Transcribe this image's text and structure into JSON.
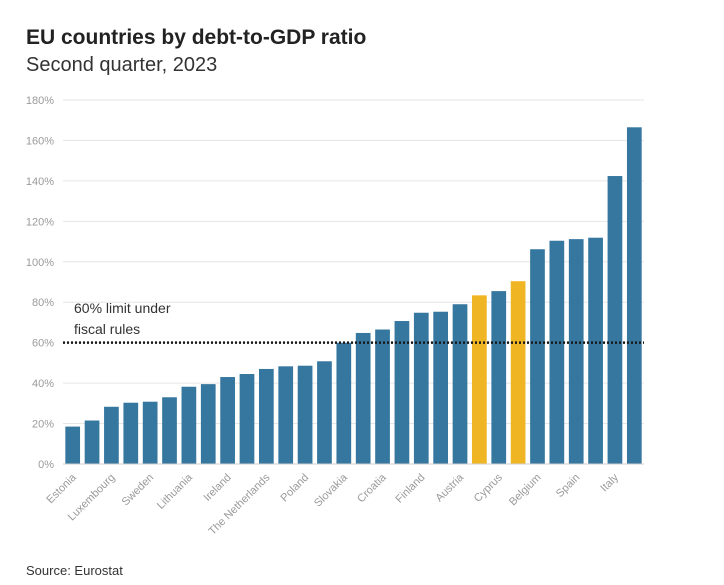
{
  "title": "EU countries by debt-to-GDP ratio",
  "subtitle": "Second quarter, 2023",
  "source": "Source: Eurostat",
  "colors": {
    "default_bar": "#36779f",
    "highlight_bar": "#f0b523",
    "grid": "#e6e6e6",
    "reference_line": "#1a1a1a"
  },
  "chart_data": {
    "type": "bar",
    "title": "EU countries by debt-to-GDP ratio",
    "subtitle": "Second quarter, 2023",
    "xlabel": "",
    "ylabel": "",
    "ylim": [
      0,
      180
    ],
    "y_ticks": [
      0,
      20,
      40,
      60,
      80,
      100,
      120,
      140,
      160,
      180
    ],
    "y_tick_labels": [
      "0%",
      "20%",
      "40%",
      "60%",
      "80%",
      "100%",
      "120%",
      "140%",
      "160%",
      "180%"
    ],
    "grid": true,
    "categories": [
      "Estonia",
      "",
      "Luxembourg",
      "",
      "Sweden",
      "",
      "Lithuania",
      "",
      "Ireland",
      "",
      "The Netherlands",
      "",
      "Poland",
      "",
      "Slovakia",
      "",
      "Croatia",
      "",
      "Finland",
      "",
      "Austria",
      "",
      "Cyprus",
      "",
      "Belgium",
      "",
      "Spain",
      "",
      "Italy",
      ""
    ],
    "values": [
      18.5,
      21.5,
      28.3,
      30.3,
      30.8,
      33.0,
      38.2,
      39.5,
      43.0,
      44.5,
      47.0,
      48.3,
      48.6,
      50.8,
      59.9,
      64.8,
      66.5,
      70.7,
      74.8,
      75.3,
      79.0,
      83.4,
      85.5,
      90.4,
      106.2,
      110.4,
      111.2,
      111.9,
      142.4,
      166.5
    ],
    "highlighted": [
      false,
      false,
      false,
      false,
      false,
      false,
      false,
      false,
      false,
      false,
      false,
      false,
      false,
      false,
      false,
      false,
      false,
      false,
      false,
      false,
      false,
      true,
      false,
      true,
      false,
      false,
      false,
      false,
      false,
      false
    ],
    "reference_line": {
      "value": 60,
      "label_lines": [
        "60% limit under",
        "fiscal rules"
      ]
    }
  }
}
